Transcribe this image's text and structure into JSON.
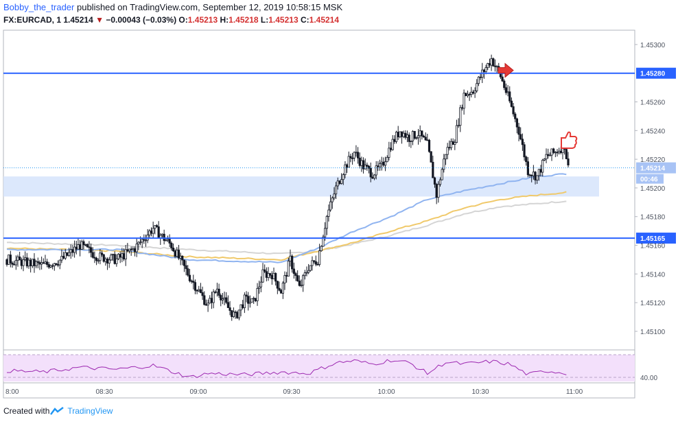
{
  "header": {
    "author": "Bobby_the_trader",
    "published": "published on TradingView.com, September 12, 2019 10:58:15 MSK",
    "symbol": "FX:EURCAD, 1",
    "last": "1.45214",
    "arrow": "▼",
    "change": "−0.00043 (−0.03%)",
    "o_label": "O:",
    "o_value": "1.45213",
    "h_label": "H:",
    "h_value": "1.45218",
    "l_label": "L:",
    "l_value": "1.45213",
    "c_label": "C:",
    "c_value": "1.45214"
  },
  "footer": {
    "created_with": "Created with",
    "brand": "TradingView"
  },
  "colors": {
    "up": "#4caf50",
    "down": "#ef5350",
    "candle": "#131722",
    "level_line": "#2962ff",
    "zone": "#d6e4fb",
    "ma_blue": "#90b4f0",
    "ma_yellow": "#f0c96a",
    "ma_gray": "#d5d5d5",
    "rsi_line": "#9c27b0",
    "rsi_band": "#f3e0fb",
    "tag_blue": "#2962ff",
    "tag_light": "#a8c3f5"
  },
  "chart_data": {
    "type": "candlestick",
    "symbol": "FX:EURCAD",
    "interval": "1",
    "y_ticks": [
      "1.45300",
      "1.45260",
      "1.45240",
      "1.45220",
      "1.45200",
      "1.45180",
      "1.45160",
      "1.45140",
      "1.45120",
      "1.45100"
    ],
    "y_range": [
      1.45088,
      1.4531
    ],
    "x_ticks": [
      "8:00",
      "08:30",
      "09:00",
      "09:30",
      "10:00",
      "10:30",
      "11:00"
    ],
    "levels": [
      {
        "label": "1.45280",
        "value": 1.4528
      },
      {
        "label": "1.45165",
        "value": 1.45165
      }
    ],
    "current_price": {
      "label": "1.45214",
      "value": 1.45214
    },
    "countdown": "00:46",
    "zone": {
      "low": 1.45194,
      "high": 1.45208
    },
    "rsi": {
      "band_low_label": "40.00"
    },
    "close_path": [
      [
        0,
        1.4515
      ],
      [
        10,
        1.45148
      ],
      [
        20,
        1.45146
      ],
      [
        30,
        1.4515
      ],
      [
        40,
        1.4516
      ],
      [
        50,
        1.45152
      ],
      [
        60,
        1.4515
      ],
      [
        70,
        1.45158
      ],
      [
        80,
        1.45172
      ],
      [
        90,
        1.4516
      ],
      [
        100,
        1.45138
      ],
      [
        110,
        1.45118
      ],
      [
        115,
        1.4513
      ],
      [
        120,
        1.45118
      ],
      [
        125,
        1.4511
      ],
      [
        130,
        1.45122
      ],
      [
        135,
        1.4512
      ],
      [
        140,
        1.4514
      ],
      [
        145,
        1.4514
      ],
      [
        150,
        1.45128
      ],
      [
        155,
        1.4515
      ],
      [
        160,
        1.4513
      ],
      [
        165,
        1.45145
      ],
      [
        170,
        1.4515
      ],
      [
        175,
        1.4518
      ],
      [
        180,
        1.452
      ],
      [
        185,
        1.45215
      ],
      [
        190,
        1.45225
      ],
      [
        195,
        1.45215
      ],
      [
        200,
        1.4521
      ],
      [
        205,
        1.45215
      ],
      [
        210,
        1.4523
      ],
      [
        215,
        1.4524
      ],
      [
        220,
        1.45235
      ],
      [
        225,
        1.45238
      ],
      [
        230,
        1.4523
      ],
      [
        235,
        1.45195
      ],
      [
        240,
        1.45225
      ],
      [
        245,
        1.45235
      ],
      [
        250,
        1.45265
      ],
      [
        255,
        1.45268
      ],
      [
        260,
        1.4528
      ],
      [
        265,
        1.4529
      ],
      [
        270,
        1.45278
      ],
      [
        275,
        1.4526
      ],
      [
        280,
        1.4524
      ],
      [
        285,
        1.45212
      ],
      [
        290,
        1.45208
      ],
      [
        295,
        1.45222
      ],
      [
        300,
        1.45225
      ],
      [
        305,
        1.4523
      ],
      [
        307,
        1.45214
      ]
    ],
    "ma_fast": [
      [
        0,
        1.45157
      ],
      [
        60,
        1.45157
      ],
      [
        100,
        1.4515
      ],
      [
        150,
        1.45148
      ],
      [
        170,
        1.45158
      ],
      [
        190,
        1.4517
      ],
      [
        210,
        1.4518
      ],
      [
        230,
        1.45192
      ],
      [
        250,
        1.45198
      ],
      [
        270,
        1.45203
      ],
      [
        290,
        1.45208
      ],
      [
        307,
        1.4521
      ]
    ],
    "ma_slow": [
      [
        0,
        1.45158
      ],
      [
        60,
        1.45156
      ],
      [
        100,
        1.45152
      ],
      [
        150,
        1.4515
      ],
      [
        170,
        1.45156
      ],
      [
        190,
        1.45162
      ],
      [
        210,
        1.4517
      ],
      [
        230,
        1.45177
      ],
      [
        250,
        1.45186
      ],
      [
        270,
        1.45192
      ],
      [
        290,
        1.45195
      ],
      [
        307,
        1.45197
      ]
    ],
    "ma_long": [
      [
        0,
        1.45162
      ],
      [
        60,
        1.4516
      ],
      [
        100,
        1.45157
      ],
      [
        150,
        1.45154
      ],
      [
        170,
        1.45156
      ],
      [
        190,
        1.45161
      ],
      [
        210,
        1.45167
      ],
      [
        230,
        1.45174
      ],
      [
        250,
        1.45182
      ],
      [
        270,
        1.45187
      ],
      [
        290,
        1.45189
      ],
      [
        307,
        1.45191
      ]
    ],
    "rsi_values": [
      [
        0,
        50
      ],
      [
        20,
        48
      ],
      [
        40,
        55
      ],
      [
        60,
        52
      ],
      [
        80,
        58
      ],
      [
        100,
        40
      ],
      [
        110,
        46
      ],
      [
        130,
        44
      ],
      [
        150,
        48
      ],
      [
        165,
        46
      ],
      [
        180,
        62
      ],
      [
        190,
        65
      ],
      [
        200,
        60
      ],
      [
        210,
        66
      ],
      [
        220,
        62
      ],
      [
        230,
        46
      ],
      [
        240,
        63
      ],
      [
        250,
        60
      ],
      [
        265,
        64
      ],
      [
        275,
        60
      ],
      [
        285,
        44
      ],
      [
        295,
        50
      ],
      [
        307,
        46
      ]
    ]
  }
}
